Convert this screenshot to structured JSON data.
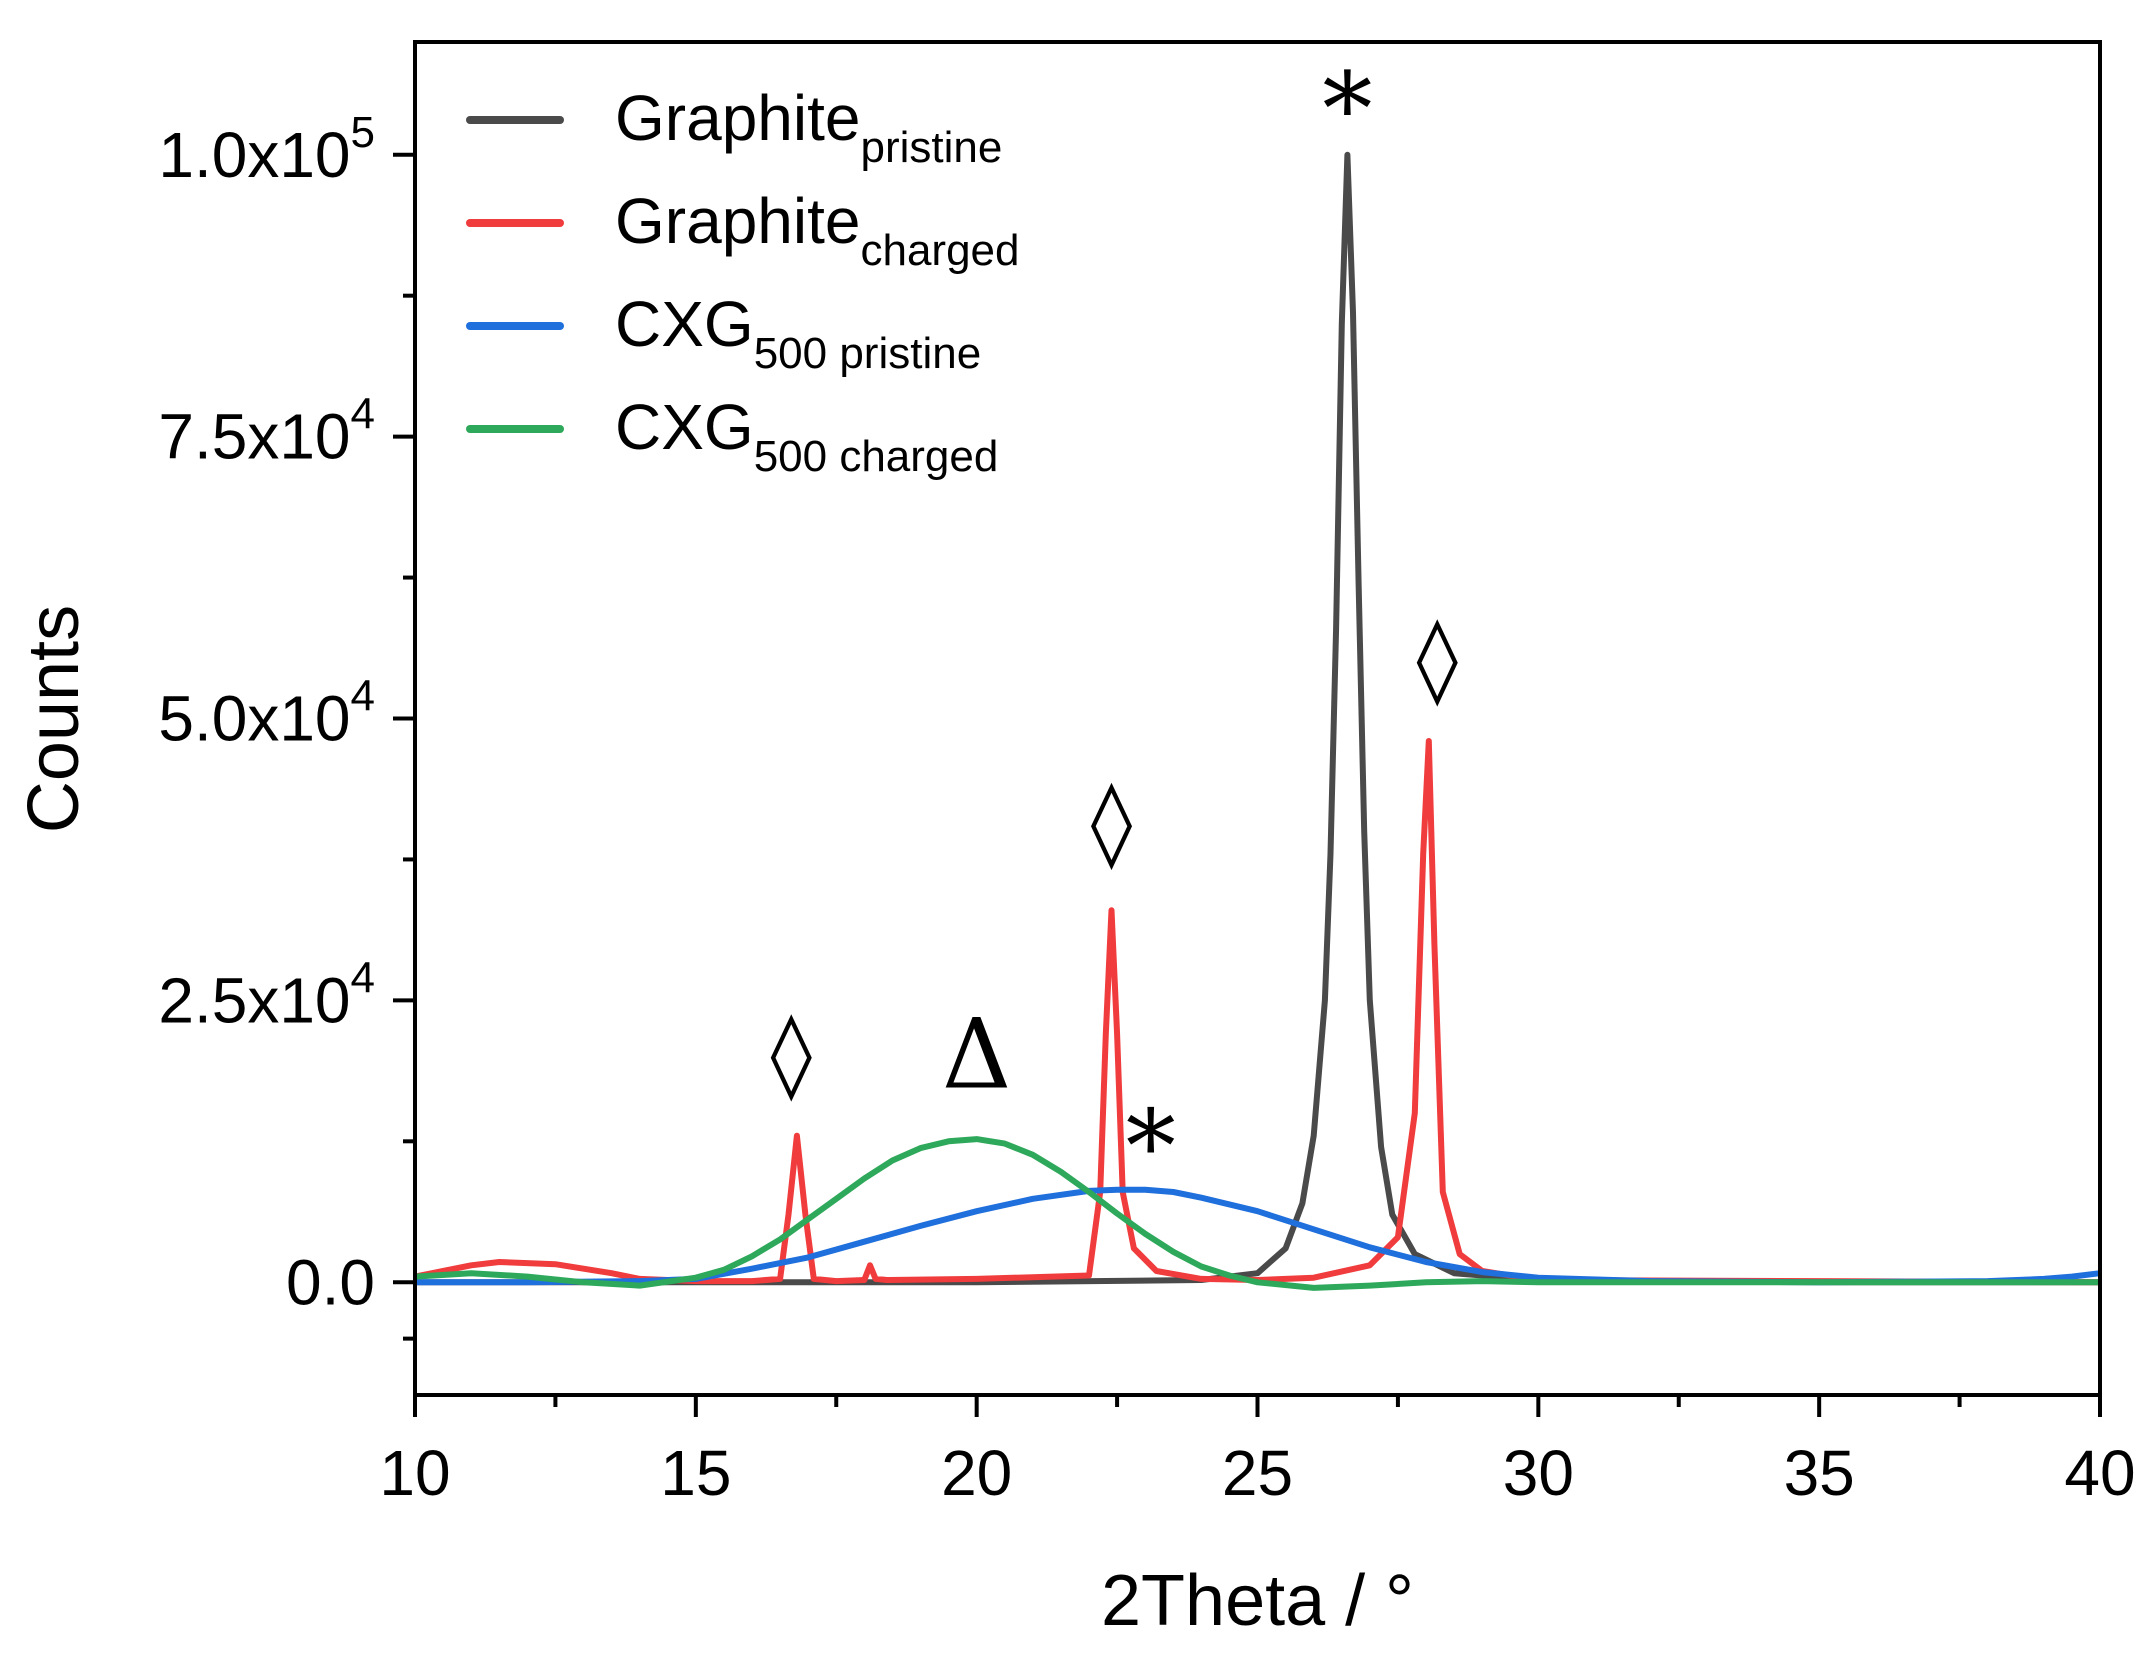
{
  "chart_data": {
    "type": "line",
    "title": "",
    "xlabel": "2Theta / °",
    "ylabel": "Counts",
    "xlim": [
      10,
      40
    ],
    "ylim": [
      -10000,
      110000
    ],
    "x_ticks": [
      10,
      15,
      20,
      25,
      30,
      35,
      40
    ],
    "x_tick_labels": [
      "10",
      "15",
      "20",
      "25",
      "30",
      "35",
      "40"
    ],
    "y_ticks": [
      0,
      25000,
      50000,
      75000,
      100000
    ],
    "y_tick_labels": [
      {
        "mantissa": "0.0",
        "exp": ""
      },
      {
        "mantissa": "2.5x10",
        "exp": "4"
      },
      {
        "mantissa": "5.0x10",
        "exp": "4"
      },
      {
        "mantissa": "7.5x10",
        "exp": "4"
      },
      {
        "mantissa": "1.0x10",
        "exp": "5"
      }
    ],
    "legend_position": "top-left",
    "series": [
      {
        "name": "Graphite",
        "sub": "pristine",
        "color": "#4a4a4a",
        "x": [
          10,
          20,
          24,
          25,
          25.5,
          25.8,
          26.0,
          26.2,
          26.3,
          26.4,
          26.5,
          26.6,
          26.7,
          26.8,
          26.9,
          27.0,
          27.2,
          27.4,
          27.8,
          28.5,
          30,
          35,
          40
        ],
        "y": [
          0,
          0,
          200,
          800,
          3000,
          7000,
          13000,
          25000,
          38000,
          58000,
          85000,
          100000,
          86000,
          62000,
          40000,
          25000,
          12000,
          6000,
          2500,
          800,
          200,
          0,
          0
        ]
      },
      {
        "name": "Graphite",
        "sub": "charged",
        "color": "#f03c3c",
        "x": [
          10,
          10.5,
          11,
          11.5,
          12,
          12.5,
          13,
          13.5,
          14,
          15,
          16,
          16.5,
          16.65,
          16.8,
          16.95,
          17.1,
          17.5,
          18,
          18.1,
          18.2,
          18.4,
          20,
          22,
          22.2,
          22.3,
          22.4,
          22.5,
          22.6,
          22.8,
          23.2,
          24,
          25,
          26,
          27,
          27.5,
          27.8,
          27.95,
          28.05,
          28.15,
          28.3,
          28.6,
          29,
          30,
          35,
          40
        ],
        "y": [
          500,
          1000,
          1500,
          1800,
          1700,
          1600,
          1200,
          800,
          300,
          100,
          100,
          300,
          6000,
          13000,
          6000,
          300,
          100,
          200,
          1500,
          300,
          200,
          300,
          600,
          8000,
          22000,
          33000,
          22000,
          8000,
          3000,
          1000,
          300,
          200,
          400,
          1500,
          4000,
          15000,
          38000,
          48000,
          30000,
          8000,
          2500,
          1000,
          200,
          100,
          0
        ]
      },
      {
        "name": "CXG",
        "sub": "500 pristine",
        "color": "#1f6fdc",
        "x": [
          10,
          12,
          14,
          15,
          16,
          17,
          18,
          19,
          20,
          21,
          22,
          22.5,
          23,
          23.5,
          24,
          25,
          26,
          27,
          28,
          29,
          30,
          32,
          35,
          38,
          39,
          39.5,
          40
        ],
        "y": [
          0,
          0,
          100,
          300,
          1200,
          2200,
          3600,
          5000,
          6300,
          7400,
          8100,
          8200,
          8200,
          8000,
          7500,
          6300,
          4700,
          3100,
          1800,
          900,
          400,
          100,
          0,
          100,
          300,
          500,
          800
        ]
      },
      {
        "name": "CXG",
        "sub": "500 charged",
        "color": "#2ea85a",
        "x": [
          10,
          11,
          12,
          13,
          14,
          15,
          15.5,
          16,
          16.5,
          17,
          17.5,
          18,
          18.5,
          19,
          19.5,
          20,
          20.5,
          21,
          21.5,
          22,
          22.5,
          23,
          23.5,
          24,
          24.5,
          25,
          26,
          27,
          28,
          29,
          30,
          35,
          40
        ],
        "y": [
          500,
          800,
          500,
          0,
          -300,
          400,
          1100,
          2300,
          3800,
          5600,
          7400,
          9200,
          10800,
          11900,
          12500,
          12700,
          12300,
          11300,
          9800,
          8000,
          6100,
          4300,
          2700,
          1400,
          600,
          0,
          -500,
          -300,
          0,
          100,
          0,
          0,
          0
        ]
      }
    ],
    "annotations": [
      {
        "symbol": "*",
        "x": 26.6,
        "y": 104500,
        "color": "#000000"
      },
      {
        "symbol": "*",
        "x": 23.1,
        "y": 12500,
        "color": "#000000"
      },
      {
        "symbol": "◊",
        "x": 16.7,
        "y": 20000,
        "color": "#000000"
      },
      {
        "symbol": "◊",
        "x": 22.4,
        "y": 40500,
        "color": "#000000"
      },
      {
        "symbol": "◊",
        "x": 28.2,
        "y": 55000,
        "color": "#000000"
      },
      {
        "symbol": "Δ",
        "x": 20.0,
        "y": 19500,
        "color": "#000000"
      }
    ]
  }
}
